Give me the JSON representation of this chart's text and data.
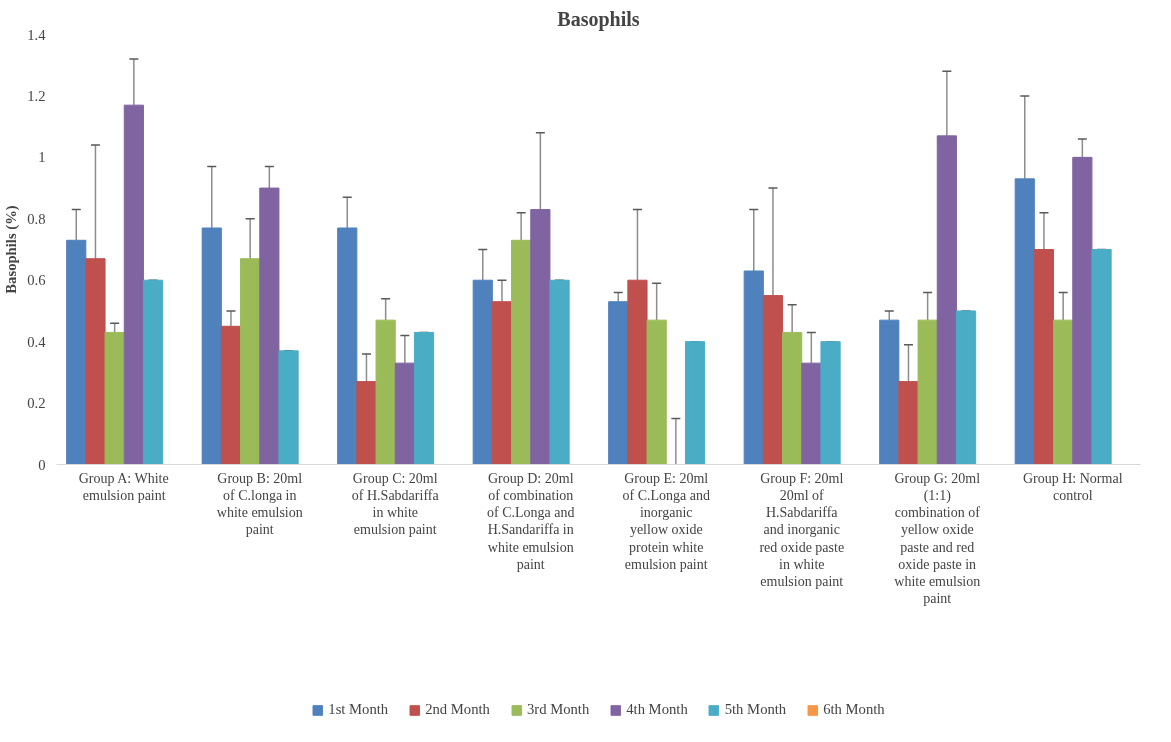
{
  "chart_data": {
    "type": "bar",
    "title": "Basophils",
    "ylabel": "Basophils (%)",
    "categories": [
      "Group A: White emulsion paint",
      "Group B: 20ml of C.longa in white emulsion paint",
      "Group C: 20ml of H.Sabdariffa in white emulsion paint",
      "Group D: 20ml of combination of C.Longa and H.Sandariffa in white emulsion paint",
      "Group E: 20ml of C.Longa and inorganic yellow oxide protein white emulsion paint",
      "Group F: 20ml 20ml of H.Sabdariffa and inorganic red oxide paste in white emulsion paint",
      "Group G: 20ml (1:1) combination of yellow oxide paste and red oxide paste in white emulsion paint",
      "Group H: Normal control"
    ],
    "series": [
      {
        "name": "1st Month",
        "color": "#4f81bd",
        "values": [
          0.73,
          0.77,
          0.77,
          0.6,
          0.53,
          0.63,
          0.47,
          0.93
        ],
        "errors": [
          [
            0.73,
            0.83
          ],
          [
            0.77,
            0.97
          ],
          [
            0.77,
            0.87
          ],
          [
            0.6,
            0.7
          ],
          [
            0.53,
            0.56
          ],
          [
            0.63,
            0.83
          ],
          [
            0.47,
            0.5
          ],
          [
            0.93,
            1.2
          ]
        ]
      },
      {
        "name": "2nd Month",
        "color": "#c0504d",
        "values": [
          0.67,
          0.45,
          0.27,
          0.53,
          0.6,
          0.55,
          0.27,
          0.7
        ],
        "errors": [
          [
            0.67,
            1.04
          ],
          [
            0.45,
            0.5
          ],
          [
            0.27,
            0.36
          ],
          [
            0.53,
            0.6
          ],
          [
            0.6,
            0.83
          ],
          [
            0.55,
            0.9
          ],
          [
            0.27,
            0.39
          ],
          [
            0.7,
            0.82
          ]
        ]
      },
      {
        "name": "3rd Month",
        "color": "#9bbb59",
        "values": [
          0.43,
          0.67,
          0.47,
          0.73,
          0.47,
          0.43,
          0.47,
          0.47
        ],
        "errors": [
          [
            0.43,
            0.46
          ],
          [
            0.67,
            0.8
          ],
          [
            0.47,
            0.54
          ],
          [
            0.73,
            0.82
          ],
          [
            0.47,
            0.59
          ],
          [
            0.43,
            0.52
          ],
          [
            0.47,
            0.56
          ],
          [
            0.47,
            0.56
          ]
        ]
      },
      {
        "name": "4th Month",
        "color": "#8064a2",
        "values": [
          1.17,
          0.9,
          0.33,
          0.83,
          0,
          0.33,
          1.07,
          1.0
        ],
        "errors": [
          [
            1.17,
            1.32
          ],
          [
            0.9,
            0.97
          ],
          [
            0.33,
            0.42
          ],
          [
            0.83,
            1.08
          ],
          [
            0,
            0.15
          ],
          [
            0.33,
            0.43
          ],
          [
            1.07,
            1.28
          ],
          [
            1.0,
            1.06
          ]
        ]
      },
      {
        "name": "5th Month",
        "color": "#4bacc6",
        "values": [
          0.6,
          0.37,
          0.43,
          0.6,
          0.4,
          0.4,
          0.5,
          0.7
        ],
        "errors": [
          [
            0.6,
            0.6
          ],
          [
            0.37,
            0.37
          ],
          [
            0.43,
            0.43
          ],
          [
            0.6,
            0.6
          ],
          [
            0.4,
            0.4
          ],
          [
            0.4,
            0.4
          ],
          [
            0.5,
            0.5
          ],
          [
            0.7,
            0.7
          ]
        ]
      },
      {
        "name": "6th Month",
        "color": "#f79646",
        "values": [
          null,
          null,
          null,
          null,
          null,
          null,
          null,
          null
        ]
      }
    ],
    "ylim": [
      0,
      1.4
    ],
    "yticks": [
      0,
      0.2,
      0.4,
      0.6,
      0.8,
      1,
      1.2,
      1.4
    ],
    "grid": false,
    "legend": "bottom"
  }
}
